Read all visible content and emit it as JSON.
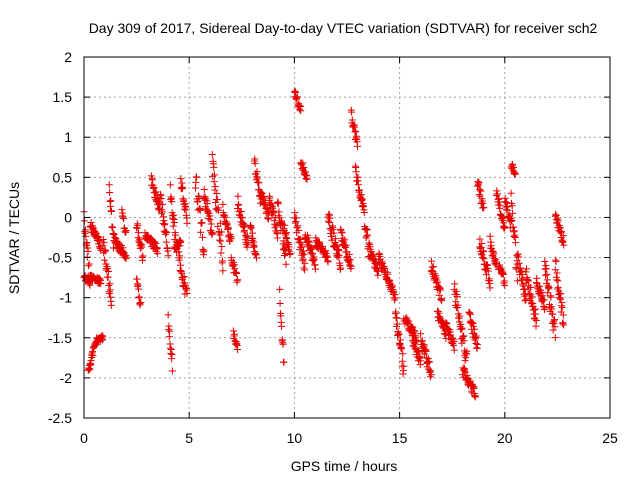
{
  "chart_data": {
    "type": "scatter",
    "title": "Day 309 of 2017, Sidereal Day-to-day VTEC variation (SDTVAR) for receiver sch2",
    "xlabel": "GPS time / hours",
    "ylabel": "SDTVAR / TECUs",
    "xlim": [
      0,
      25
    ],
    "ylim": [
      -2.5,
      2
    ],
    "xticks": [
      "0",
      "5",
      "10",
      "15",
      "20",
      "25"
    ],
    "yticks": [
      "-2.5",
      "-2",
      "-1.5",
      "-1",
      "-0.5",
      "0",
      "0.5",
      "1",
      "1.5",
      "2"
    ],
    "grid": true,
    "marker": "plus",
    "color": "#e60000",
    "series": [
      {
        "name": "SDTVAR",
        "segments": [
          [
            0.0,
            0.3,
            0.0,
            -0.8
          ],
          [
            0.0,
            0.3,
            -0.75,
            -0.8
          ],
          [
            0.2,
            0.3,
            -1.9,
            -1.85
          ],
          [
            0.3,
            0.6,
            -1.8,
            -1.55
          ],
          [
            0.6,
            0.9,
            -1.55,
            -1.5
          ],
          [
            0.3,
            0.8,
            -0.1,
            -0.35
          ],
          [
            0.3,
            0.8,
            -0.75,
            -0.8
          ],
          [
            0.9,
            1.3,
            -0.3,
            -1.0
          ],
          [
            1.2,
            1.4,
            0.4,
            -0.3
          ],
          [
            1.4,
            2.0,
            -0.25,
            -0.5
          ],
          [
            1.8,
            2.0,
            0.05,
            -0.2
          ],
          [
            2.5,
            2.8,
            -0.1,
            -0.5
          ],
          [
            2.5,
            2.7,
            -0.8,
            -1.1
          ],
          [
            2.9,
            3.5,
            -0.2,
            -0.4
          ],
          [
            3.2,
            3.6,
            0.45,
            0.1
          ],
          [
            3.6,
            4.0,
            0.3,
            -0.4
          ],
          [
            4.0,
            4.2,
            -1.3,
            -1.85
          ],
          [
            4.1,
            4.4,
            0.3,
            -0.4
          ],
          [
            4.3,
            4.6,
            -0.4,
            -0.3
          ],
          [
            4.5,
            4.9,
            -0.5,
            -1.0
          ],
          [
            4.6,
            4.9,
            0.45,
            0.0
          ],
          [
            5.3,
            5.7,
            0.5,
            -0.4
          ],
          [
            5.7,
            6.1,
            0.3,
            -0.2
          ],
          [
            6.1,
            6.6,
            0.65,
            -0.5
          ],
          [
            6.6,
            7.0,
            0.1,
            -0.3
          ],
          [
            7.0,
            7.3,
            -0.5,
            -0.8
          ],
          [
            7.1,
            7.3,
            -1.45,
            -1.65
          ],
          [
            7.3,
            7.8,
            0.2,
            -0.35
          ],
          [
            7.9,
            8.2,
            -0.1,
            -0.5
          ],
          [
            8.1,
            8.4,
            0.7,
            0.2
          ],
          [
            8.4,
            8.8,
            0.3,
            0.0
          ],
          [
            8.8,
            9.2,
            0.25,
            -0.2
          ],
          [
            9.2,
            9.6,
            0.2,
            -0.5
          ],
          [
            9.3,
            9.5,
            -1.0,
            -1.85
          ],
          [
            9.5,
            9.8,
            -0.1,
            -0.5
          ],
          [
            10.0,
            10.3,
            1.55,
            1.35
          ],
          [
            10.3,
            10.6,
            0.7,
            0.5
          ],
          [
            10.0,
            10.5,
            0.0,
            -0.6
          ],
          [
            10.5,
            11.0,
            -0.2,
            -0.6
          ],
          [
            11.0,
            11.6,
            -0.3,
            -0.5
          ],
          [
            11.6,
            12.2,
            0.0,
            -0.6
          ],
          [
            12.2,
            12.7,
            -0.2,
            -0.6
          ],
          [
            12.7,
            13.0,
            1.3,
            0.9
          ],
          [
            12.9,
            13.2,
            0.6,
            0.2
          ],
          [
            13.2,
            13.6,
            0.2,
            -0.5
          ],
          [
            13.6,
            14.0,
            -0.4,
            -0.7
          ],
          [
            14.0,
            14.5,
            -0.5,
            -0.8
          ],
          [
            14.5,
            14.8,
            -0.8,
            -1.0
          ],
          [
            14.8,
            15.2,
            -1.2,
            -1.9
          ],
          [
            15.2,
            15.8,
            -1.25,
            -1.5
          ],
          [
            15.6,
            16.0,
            -1.5,
            -1.8
          ],
          [
            16.0,
            16.5,
            -1.5,
            -1.95
          ],
          [
            16.5,
            17.0,
            -0.6,
            -1.0
          ],
          [
            16.8,
            17.2,
            -1.2,
            -1.45
          ],
          [
            17.2,
            17.6,
            -1.35,
            -1.6
          ],
          [
            17.6,
            18.2,
            -0.9,
            -1.8
          ],
          [
            18.0,
            18.6,
            -1.9,
            -2.2
          ],
          [
            18.3,
            18.7,
            -1.2,
            -1.6
          ],
          [
            18.7,
            19.0,
            0.45,
            0.1
          ],
          [
            18.8,
            19.3,
            -0.3,
            -0.8
          ],
          [
            19.3,
            19.6,
            -0.3,
            -0.6
          ],
          [
            19.6,
            20.0,
            0.3,
            -0.2
          ],
          [
            19.7,
            20.0,
            -0.6,
            -0.8
          ],
          [
            20.0,
            20.3,
            0.25,
            -0.1
          ],
          [
            20.3,
            20.5,
            0.65,
            0.55
          ],
          [
            20.3,
            20.6,
            0.2,
            -0.7
          ],
          [
            20.6,
            21.0,
            -0.5,
            -1.0
          ],
          [
            21.0,
            21.5,
            -0.7,
            -1.3
          ],
          [
            21.5,
            21.9,
            -0.8,
            -1.1
          ],
          [
            21.9,
            22.4,
            -0.6,
            -1.45
          ],
          [
            22.4,
            22.8,
            -0.6,
            -1.3
          ],
          [
            22.4,
            22.8,
            0.0,
            -0.3
          ]
        ]
      }
    ]
  }
}
